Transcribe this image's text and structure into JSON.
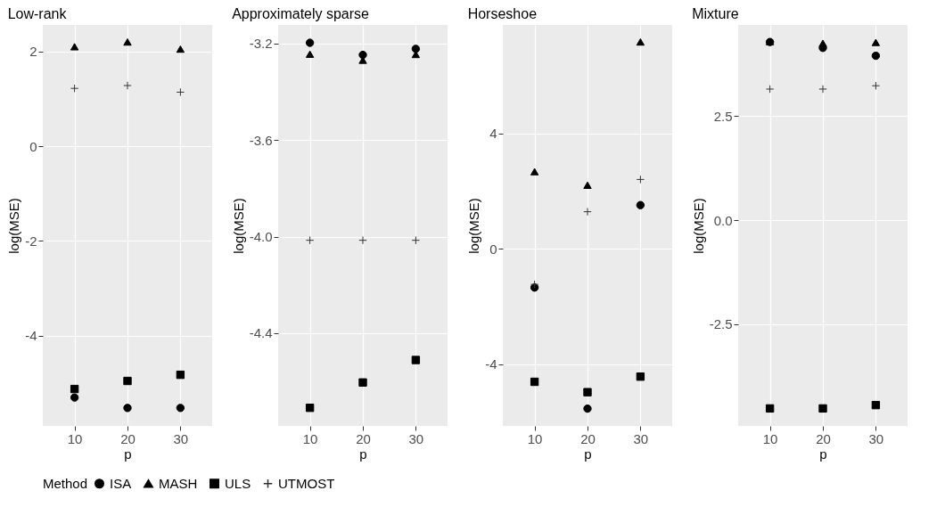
{
  "chart_data": [
    {
      "type": "scatter",
      "title": "Low-rank",
      "xlabel": "p",
      "ylabel": "log(MSE)",
      "categories": [
        "10",
        "20",
        "30"
      ],
      "ylim": [
        -5.91,
        2.56
      ],
      "yticks": [
        -4,
        -2,
        0,
        2
      ],
      "grid": true,
      "legend": "bottom",
      "legend_title": "Method",
      "series": [
        {
          "name": "ISA",
          "color": "#000000",
          "marker": "circle",
          "values": [
            -5.31,
            -5.53,
            -5.53
          ]
        },
        {
          "name": "MASH",
          "color": "#000000",
          "marker": "triangle",
          "values": [
            2.1,
            2.2,
            2.05
          ]
        },
        {
          "name": "ULS",
          "color": "#000000",
          "marker": "square",
          "values": [
            -5.13,
            -4.96,
            -4.83
          ]
        },
        {
          "name": "UTMOST",
          "color": "#333333",
          "marker": "cross",
          "values": [
            1.22,
            1.28,
            1.14
          ]
        }
      ]
    },
    {
      "type": "scatter",
      "title": "Approximately sparse",
      "xlabel": "p",
      "ylabel": "log(MSE)",
      "categories": [
        "10",
        "20",
        "30"
      ],
      "ylim": [
        -4.784,
        -3.123
      ],
      "yticks": [
        {
          "value": -4.4,
          "label": "-4.4"
        },
        {
          "value": -4.0,
          "label": "-4.0"
        },
        {
          "value": -3.6,
          "label": "-3.6"
        },
        {
          "value": -3.2,
          "label": "-3.2"
        }
      ],
      "grid": true,
      "series": [
        {
          "name": "ISA",
          "color": "#000000",
          "marker": "circle",
          "values": [
            -3.197,
            -3.247,
            -3.222
          ]
        },
        {
          "name": "MASH",
          "color": "#000000",
          "marker": "triangle",
          "values": [
            -3.244,
            -3.269,
            -3.245
          ]
        },
        {
          "name": "ULS",
          "color": "#000000",
          "marker": "square",
          "values": [
            -4.709,
            -4.604,
            -4.511
          ]
        },
        {
          "name": "UTMOST",
          "color": "#333333",
          "marker": "cross",
          "values": [
            -4.015,
            -4.015,
            -4.015
          ]
        }
      ]
    },
    {
      "type": "scatter",
      "title": "Horseshoe",
      "xlabel": "p",
      "ylabel": "log(MSE)",
      "categories": [
        "10",
        "20",
        "30"
      ],
      "ylim": [
        -6.14,
        7.77
      ],
      "yticks": [
        -4,
        0,
        4
      ],
      "grid": true,
      "series": [
        {
          "name": "ISA",
          "color": "#000000",
          "marker": "circle",
          "values": [
            -1.34,
            -5.54,
            1.52
          ]
        },
        {
          "name": "MASH",
          "color": "#000000",
          "marker": "triangle",
          "values": [
            2.68,
            2.21,
            7.18
          ]
        },
        {
          "name": "ULS",
          "color": "#000000",
          "marker": "square",
          "values": [
            -4.61,
            -4.97,
            -4.43
          ]
        },
        {
          "name": "UTMOST",
          "color": "#333333",
          "marker": "cross",
          "values": [
            -1.23,
            1.29,
            2.41
          ]
        }
      ]
    },
    {
      "type": "scatter",
      "title": "Mixture",
      "xlabel": "p",
      "ylabel": "log(MSE)",
      "categories": [
        "10",
        "20",
        "30"
      ],
      "ylim": [
        -4.94,
        4.69
      ],
      "yticks": [
        {
          "value": -2.5,
          "label": "-2.5"
        },
        {
          "value": 0,
          "label": "0.0"
        },
        {
          "value": 2.5,
          "label": "2.5"
        }
      ],
      "grid": true,
      "series": [
        {
          "name": "ISA",
          "color": "#000000",
          "marker": "circle",
          "values": [
            4.28,
            4.14,
            3.95
          ]
        },
        {
          "name": "MASH",
          "color": "#000000",
          "marker": "triangle",
          "values": [
            4.29,
            4.25,
            4.27
          ]
        },
        {
          "name": "ULS",
          "color": "#000000",
          "marker": "square",
          "values": [
            -4.52,
            -4.52,
            -4.44
          ]
        },
        {
          "name": "UTMOST",
          "color": "#333333",
          "marker": "cross",
          "values": [
            3.15,
            3.15,
            3.23
          ]
        }
      ]
    }
  ]
}
